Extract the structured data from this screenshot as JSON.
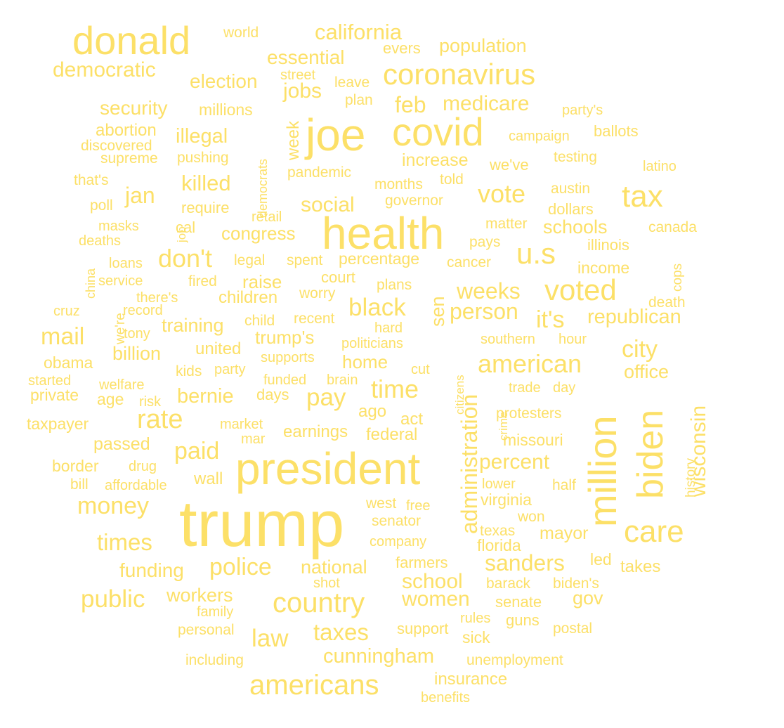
{
  "color": "#FCE068",
  "words": [
    "trump",
    "president",
    "health",
    "joe",
    "covid",
    "donald",
    "million",
    "biden",
    "coronavirus",
    "care",
    "americans",
    "country",
    "u.s",
    "tax",
    "voted",
    "california",
    "wisconsin",
    "administration",
    "rate",
    "money",
    "american",
    "public",
    "police",
    "time",
    "pay",
    "paid",
    "times",
    "black",
    "mail",
    "law",
    "taxes",
    "sanders",
    "democratic",
    "vote",
    "essential",
    "population",
    "election",
    "feb",
    "medicare",
    "jobs",
    "weeks",
    "city",
    "school",
    "women",
    "cunningham",
    "jan",
    "don't",
    "it's",
    "person",
    "republican",
    "killed",
    "security",
    "illegal",
    "social",
    "congress",
    "raise",
    "trump's",
    "national",
    "funding",
    "workers",
    "bernie",
    "children",
    "training",
    "billion",
    "united",
    "home",
    "percent",
    "millions",
    "increase",
    "court",
    "schools",
    "insurance",
    "sen",
    "world",
    "evers",
    "street",
    "leave",
    "plan",
    "party's",
    "ballots",
    "campaign",
    "abortion",
    "discovered",
    "supreme",
    "pushing",
    "democrats",
    "week",
    "pandemic",
    "months",
    "told",
    "testing",
    "we've",
    "latino",
    "that's",
    "austin",
    "dollars",
    "poll",
    "governor",
    "require",
    "retail",
    "job",
    "masks",
    "cal",
    "deaths",
    "matter",
    "pays",
    "canada",
    "illinois",
    "loans",
    "legal",
    "spent",
    "percentage",
    "cancer",
    "income",
    "cops",
    "china",
    "service",
    "fired",
    "worry",
    "plans",
    "there's",
    "record",
    "death",
    "cruz",
    "we're",
    "child",
    "recent",
    "hard",
    "tony",
    "politicians",
    "southern",
    "hour",
    "obama",
    "supports",
    "citizens",
    "kids",
    "party",
    "cut",
    "office",
    "started",
    "welfare",
    "funded",
    "brain",
    "private",
    "age",
    "risk",
    "days",
    "trade",
    "day",
    "crime",
    "taxpayer",
    "ago",
    "act",
    "protesters",
    "market",
    "earnings",
    "mar",
    "federal",
    "passed",
    "missouri",
    "history",
    "border",
    "drug",
    "wall",
    "bill",
    "affordable",
    "lower",
    "half",
    "west",
    "free",
    "virginia",
    "senator",
    "won",
    "texas",
    "mayor",
    "company",
    "florida",
    "led",
    "farmers",
    "takes",
    "shot",
    "barack",
    "biden's",
    "family",
    "senate",
    "gov",
    "rules",
    "guns",
    "personal",
    "support",
    "sick",
    "postal",
    "including",
    "unemployment",
    "benefits"
  ]
}
